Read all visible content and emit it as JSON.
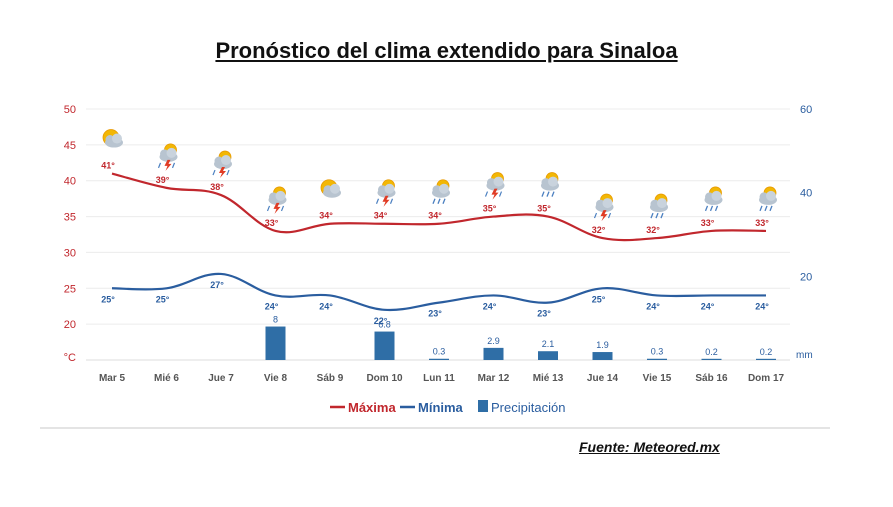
{
  "title": "Pronóstico del clima extendido para Sinaloa",
  "source": "Fuente: Meteored.mx",
  "colors": {
    "max": "#c1272d",
    "min": "#2a5d9f",
    "precip": "#2f6ea6",
    "sun": "#f2b705",
    "cloud": "#b8c4d0",
    "bolt": "#e03b24"
  },
  "chart_data": {
    "type": "line",
    "categories": [
      "Mar 5",
      "Mié 6",
      "Jue 7",
      "Vie 8",
      "Sáb 9",
      "Dom 10",
      "Lun 11",
      "Mar 12",
      "Mié 13",
      "Jue 14",
      "Vie 15",
      "Sáb 16",
      "Dom 17"
    ],
    "icons": [
      "sun-cloud-icon",
      "storm-icon",
      "storm-icon",
      "storm-icon",
      "sun-cloud-icon",
      "storm-icon",
      "rain-icon",
      "storm-icon",
      "rain-icon",
      "storm-icon",
      "rain-icon",
      "rain-icon",
      "rain-icon"
    ],
    "series": [
      {
        "name": "Máxima",
        "type": "line",
        "axis": "left",
        "values": [
          41,
          39,
          38,
          33,
          34,
          34,
          34,
          35,
          35,
          32,
          32,
          33,
          33
        ],
        "labels": [
          "41°",
          "39°",
          "38°",
          "33°",
          "34°",
          "34°",
          "34°",
          "35°",
          "35°",
          "32°",
          "32°",
          "33°",
          "33°"
        ]
      },
      {
        "name": "Mínima",
        "type": "line",
        "axis": "left",
        "values": [
          25,
          25,
          27,
          24,
          24,
          22,
          23,
          24,
          23,
          25,
          24,
          24,
          24
        ],
        "labels": [
          "25°",
          "25°",
          "27°",
          "24°",
          "24°",
          "22°",
          "23°",
          "24°",
          "23°",
          "25°",
          "24°",
          "24°",
          "24°"
        ]
      },
      {
        "name": "Precipitación",
        "type": "bar",
        "axis": "right",
        "values": [
          null,
          null,
          null,
          8,
          null,
          6.8,
          0.3,
          2.9,
          2.1,
          1.9,
          0.3,
          0.2,
          0.2
        ],
        "labels": [
          "",
          "",
          "",
          "8",
          "",
          "6.8",
          "0.3",
          "2.9",
          "2.1",
          "1.9",
          "0.3",
          "0.2",
          "0.2"
        ]
      }
    ],
    "left_axis": {
      "ticks": [
        "50",
        "45",
        "40",
        "35",
        "30",
        "25",
        "20"
      ],
      "unit": "°C",
      "range": [
        15,
        50
      ]
    },
    "right_axis": {
      "ticks": [
        "60",
        "40",
        "20"
      ],
      "unit": "mm",
      "range": [
        0,
        60
      ]
    },
    "legend": {
      "position": "bottom",
      "items": [
        "Máxima",
        "Mínima",
        "Precipitación"
      ]
    },
    "grid": true
  }
}
